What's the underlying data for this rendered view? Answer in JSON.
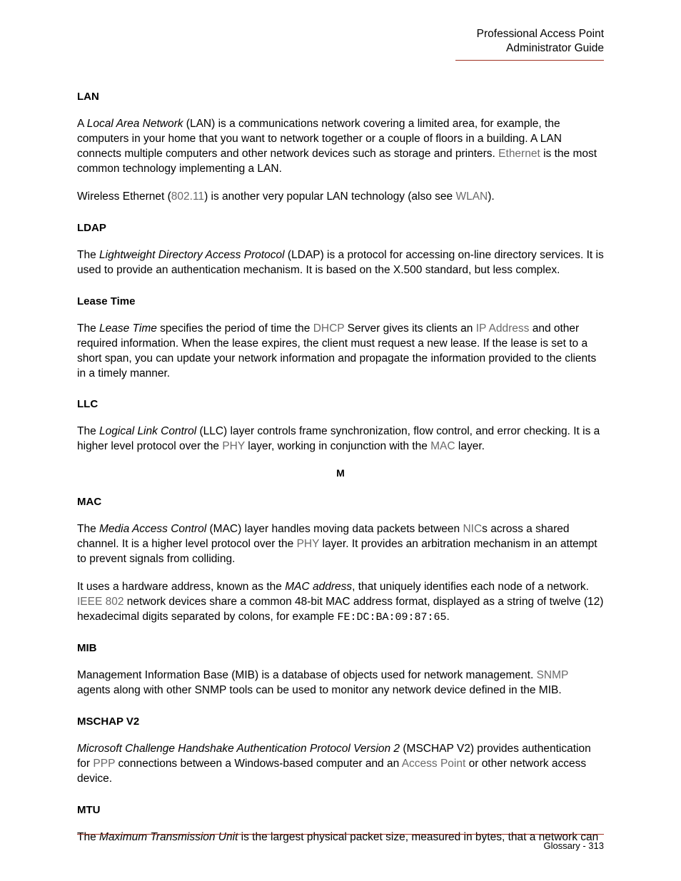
{
  "header": {
    "line1": "Professional Access Point",
    "line2": "Administrator Guide"
  },
  "sections": {
    "lan": {
      "title": "LAN",
      "p1_a": "A ",
      "p1_italic": "Local Area Network",
      "p1_b": " (LAN) is a communications network covering a limited area, for example, the computers in your home that you want to network together or a couple of floors in a building. A LAN connects multiple computers and other network devices such as storage and printers. ",
      "p1_link1": "Ethernet",
      "p1_c": " is the most common technology implementing a LAN.",
      "p2_a": "Wireless Ethernet (",
      "p2_link1": "802.11",
      "p2_b": ") is another very popular LAN technology (also see ",
      "p2_link2": "WLAN",
      "p2_c": ")."
    },
    "ldap": {
      "title": "LDAP",
      "p1_a": "The ",
      "p1_italic": "Lightweight Directory Access Protocol",
      "p1_b": " (LDAP) is a protocol for accessing on-line directory services. It is used to provide an authentication mechanism. It is based on the X.500 standard, but less complex."
    },
    "leasetime": {
      "title": "Lease Time",
      "p1_a": "The ",
      "p1_italic": "Lease Time",
      "p1_b": " specifies the period of time the ",
      "p1_link1": "DHCP",
      "p1_c": " Server gives its clients an ",
      "p1_link2": "IP Address",
      "p1_d": " and other required information. When the lease expires, the client must request a new lease. If the lease is set to a short span, you can update your network information and propagate the information provided to the clients in a timely manner."
    },
    "llc": {
      "title": "LLC",
      "p1_a": "The ",
      "p1_italic": "Logical Link Control",
      "p1_b": " (LLC) layer controls frame synchronization, flow control, and error checking. It is a higher level protocol over the ",
      "p1_link1": "PHY",
      "p1_c": " layer, working in conjunction with the ",
      "p1_link2": "MAC",
      "p1_d": " layer."
    },
    "letter_m": "M",
    "mac": {
      "title": "MAC",
      "p1_a": "The ",
      "p1_italic": "Media Access Control",
      "p1_b": " (MAC) layer handles moving data packets between ",
      "p1_link1": "NIC",
      "p1_c": "s across a shared channel. It is a higher level protocol over the ",
      "p1_link2": "PHY",
      "p1_d": " layer. It provides an arbitration mechanism in an attempt to prevent signals from colliding.",
      "p2_a": "It uses a hardware address, known as the ",
      "p2_italic": "MAC address",
      "p2_b": ", that uniquely identifies each node of a network. ",
      "p2_link1": "IEEE",
      "p2_link2": " 802",
      "p2_c": " network devices share a common 48-bit MAC address format, displayed as a string of twelve (12) hexadecimal digits separated by colons, for example ",
      "p2_mono": "FE:DC:BA:09:87:65",
      "p2_d": "."
    },
    "mib": {
      "title": "MIB",
      "p1_a": "Management Information Base (MIB) is a database of objects used for network management. ",
      "p1_link1": "SNMP",
      "p1_b": " agents along with other SNMP tools can be used to monitor any network device defined in the MIB."
    },
    "mschap": {
      "title": "MSCHAP V2",
      "p1_italic": "Microsoft Challenge Handshake Authentication Protocol Version 2",
      "p1_a": " (MSCHAP V2) provides authentication for ",
      "p1_link1": "PPP",
      "p1_b": " connections between a Windows-based computer and an ",
      "p1_link2": "Access Point",
      "p1_c": " or other network access device."
    },
    "mtu": {
      "title": "MTU",
      "p1_a": "The ",
      "p1_italic": "Maximum Transmission Unit",
      "p1_b": " is the largest physical packet size, measured in bytes, that a network can"
    }
  },
  "footer": {
    "label": "Glossary - 313"
  }
}
